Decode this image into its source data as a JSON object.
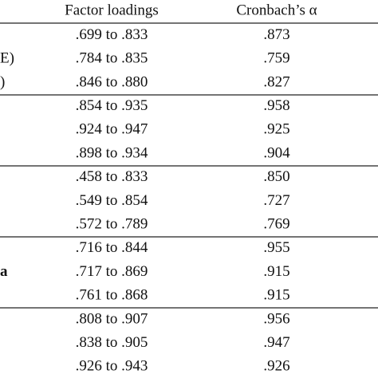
{
  "table": {
    "header": [
      "Factor loadings",
      "Cronbach’s α"
    ],
    "rows": [
      {
        "loadings": ".699 to .833",
        "alpha": ".873"
      },
      {
        "label": "E)",
        "loadings": ".784 to .835",
        "alpha": ".759"
      },
      {
        "label": ")",
        "loadings": ".846 to .880",
        "alpha": ".827"
      },
      {
        "loadings": ".854 to .935",
        "alpha": ".958"
      },
      {
        "loadings": ".924 to .947",
        "alpha": ".925"
      },
      {
        "loadings": ".898 to .934",
        "alpha": ".904"
      },
      {
        "loadings": ".458 to .833",
        "alpha": ".850"
      },
      {
        "loadings": ".549 to .854",
        "alpha": ".727"
      },
      {
        "loadings": ".572 to .789",
        "alpha": ".769"
      },
      {
        "loadings": ".716 to .844",
        "alpha": ".955"
      },
      {
        "label": "a",
        "bold": true,
        "loadings": ".717 to .869",
        "alpha": ".915"
      },
      {
        "loadings": ".761 to .868",
        "alpha": ".915"
      },
      {
        "loadings": ".808 to .907",
        "alpha": ".956"
      },
      {
        "loadings": ".838 to .905",
        "alpha": ".947"
      },
      {
        "loadings": ".926 to .943",
        "alpha": ".926"
      }
    ]
  }
}
